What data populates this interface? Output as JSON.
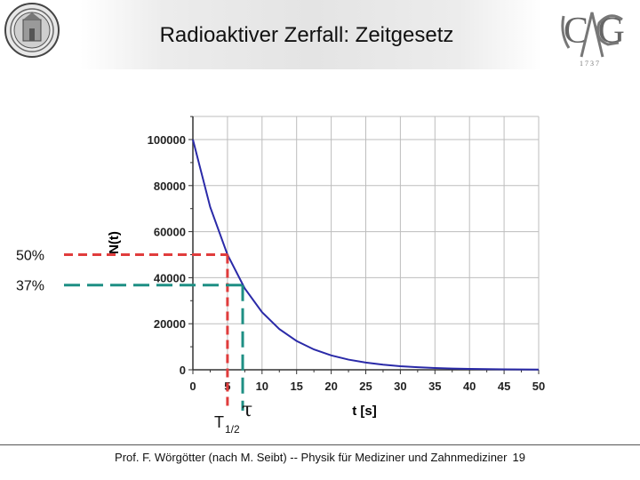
{
  "slide": {
    "title": "Radioaktiver Zerfall: Zeitgesetz",
    "footer_text": "Prof. F. Wörgötter (nach M. Seibt) -- Physik für Mediziner und Zahnmediziner",
    "page_number": "19"
  },
  "logos": {
    "left": "university-seal-icon",
    "right": "institute-monogram-icon",
    "right_text": "C G A",
    "right_subtext": "1 7 3 7"
  },
  "chart_data": {
    "type": "line",
    "ylabel": "N(t)",
    "xlabel": "t [s]",
    "xlim": [
      0,
      50
    ],
    "ylim": [
      0,
      100000
    ],
    "x_ticks": [
      0,
      5,
      10,
      15,
      20,
      25,
      30,
      35,
      40,
      45,
      50
    ],
    "y_ticks": [
      0,
      20000,
      40000,
      60000,
      80000,
      100000
    ],
    "grid": true,
    "series": [
      {
        "color": "#2a2aa8",
        "x": [
          0,
          2.5,
          5,
          7.5,
          10,
          12.5,
          15,
          17.5,
          20,
          22.5,
          25,
          27.5,
          30,
          32.5,
          35,
          37.5,
          40,
          42.5,
          45,
          47.5,
          50
        ],
        "y": [
          100000,
          70711,
          50000,
          35355,
          25000,
          17678,
          12500,
          8839,
          6250,
          4419,
          3125,
          2210,
          1563,
          1105,
          781,
          552,
          391,
          276,
          195,
          138,
          98
        ]
      }
    ],
    "annotations": [
      {
        "label": "50%",
        "value": 50000,
        "at_t": 5,
        "color": "#e03c3c",
        "vertical_label": "T",
        "vertical_label_sub": "1/2"
      },
      {
        "label": "37%",
        "value": 36788,
        "at_t": 7.2,
        "color": "#1e8f84",
        "vertical_label": "τ"
      }
    ]
  }
}
